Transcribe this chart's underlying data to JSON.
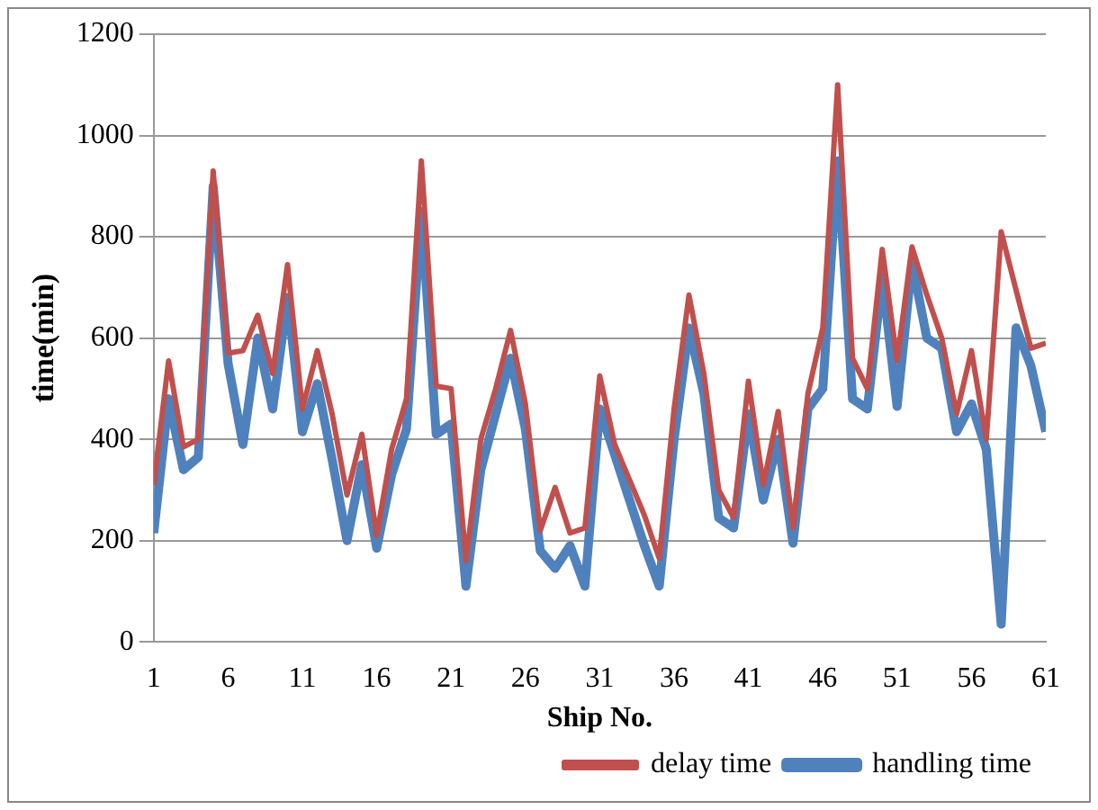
{
  "chart_data": {
    "type": "line",
    "xlabel": "Ship No.",
    "ylabel": "time(min)",
    "x": [
      1,
      2,
      3,
      4,
      5,
      6,
      7,
      8,
      9,
      10,
      11,
      12,
      13,
      14,
      15,
      16,
      17,
      18,
      19,
      20,
      21,
      22,
      23,
      24,
      25,
      26,
      27,
      28,
      29,
      30,
      31,
      32,
      33,
      34,
      35,
      36,
      37,
      38,
      39,
      40,
      41,
      42,
      43,
      44,
      45,
      46,
      47,
      48,
      49,
      50,
      51,
      52,
      53,
      54,
      55,
      56,
      57,
      58,
      59,
      60,
      61
    ],
    "xlim": [
      1,
      61
    ],
    "xticks": [
      1,
      6,
      11,
      16,
      21,
      26,
      31,
      36,
      41,
      46,
      51,
      56,
      61
    ],
    "series": [
      {
        "name": "delay time",
        "color": "#c0504d",
        "values": [
          310,
          555,
          385,
          400,
          930,
          570,
          575,
          645,
          530,
          745,
          460,
          575,
          450,
          290,
          410,
          210,
          380,
          480,
          950,
          505,
          500,
          160,
          400,
          500,
          615,
          470,
          220,
          305,
          215,
          225,
          525,
          390,
          320,
          250,
          165,
          460,
          685,
          530,
          300,
          245,
          515,
          310,
          455,
          225,
          490,
          620,
          1100,
          560,
          500,
          775,
          555,
          780,
          685,
          600,
          450,
          575,
          400,
          810,
          695,
          580,
          590
        ]
      },
      {
        "name": "handling time",
        "color": "#4f81bd",
        "values": [
          215,
          480,
          340,
          365,
          900,
          550,
          390,
          600,
          460,
          680,
          415,
          510,
          360,
          200,
          350,
          185,
          330,
          420,
          850,
          410,
          430,
          110,
          340,
          450,
          560,
          420,
          180,
          145,
          190,
          110,
          460,
          370,
          280,
          190,
          110,
          400,
          620,
          490,
          245,
          225,
          450,
          280,
          400,
          195,
          460,
          500,
          950,
          480,
          460,
          720,
          465,
          750,
          600,
          580,
          415,
          470,
          380,
          35,
          620,
          545,
          415
        ]
      }
    ],
    "ylim": [
      0,
      1200
    ],
    "yticks": [
      0,
      200,
      400,
      600,
      800,
      1000,
      1200
    ],
    "grid": "y",
    "legend": "bottom right",
    "marker": "none",
    "line_style": "solid"
  }
}
